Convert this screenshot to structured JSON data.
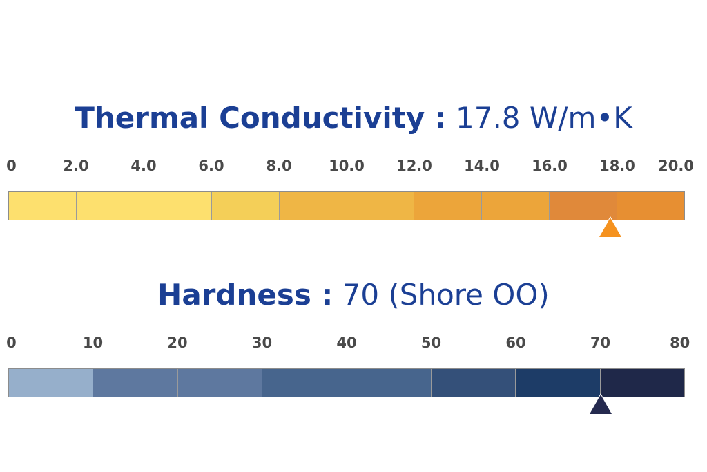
{
  "chart_data": [
    {
      "type": "bar",
      "title_label": "Thermal Conductivity :",
      "title_value": "17.8 W/m•K",
      "value": 17.8,
      "xlim": [
        0,
        20
      ],
      "ticks": [
        "0",
        "2.0",
        "4.0",
        "6.0",
        "8.0",
        "10.0",
        "12.0",
        "14.0",
        "16.0",
        "18.0",
        "20.0"
      ],
      "tick_values": [
        0,
        2,
        4,
        6,
        8,
        10,
        12,
        14,
        16,
        18,
        20
      ],
      "segment_colors": [
        "#fde06e",
        "#fde06e",
        "#fde06e",
        "#f4cf58",
        "#efb645",
        "#efb645",
        "#eca53a",
        "#eca53a",
        "#e0893a",
        "#e78f32"
      ],
      "marker_color": "#f5921f"
    },
    {
      "type": "bar",
      "title_label": "Hardness :",
      "title_value": "70 (Shore OO)",
      "value": 70,
      "xlim": [
        0,
        80
      ],
      "ticks": [
        "0",
        "10",
        "20",
        "30",
        "40",
        "50",
        "60",
        "70",
        "80"
      ],
      "tick_values": [
        0,
        10,
        20,
        30,
        40,
        50,
        60,
        70,
        80
      ],
      "segment_colors": [
        "#96afcb",
        "#5e789f",
        "#5e789f",
        "#47658d",
        "#47658d",
        "#345079",
        "#1d3c67",
        "#1f2849"
      ],
      "marker_color": "#252a4f"
    }
  ]
}
